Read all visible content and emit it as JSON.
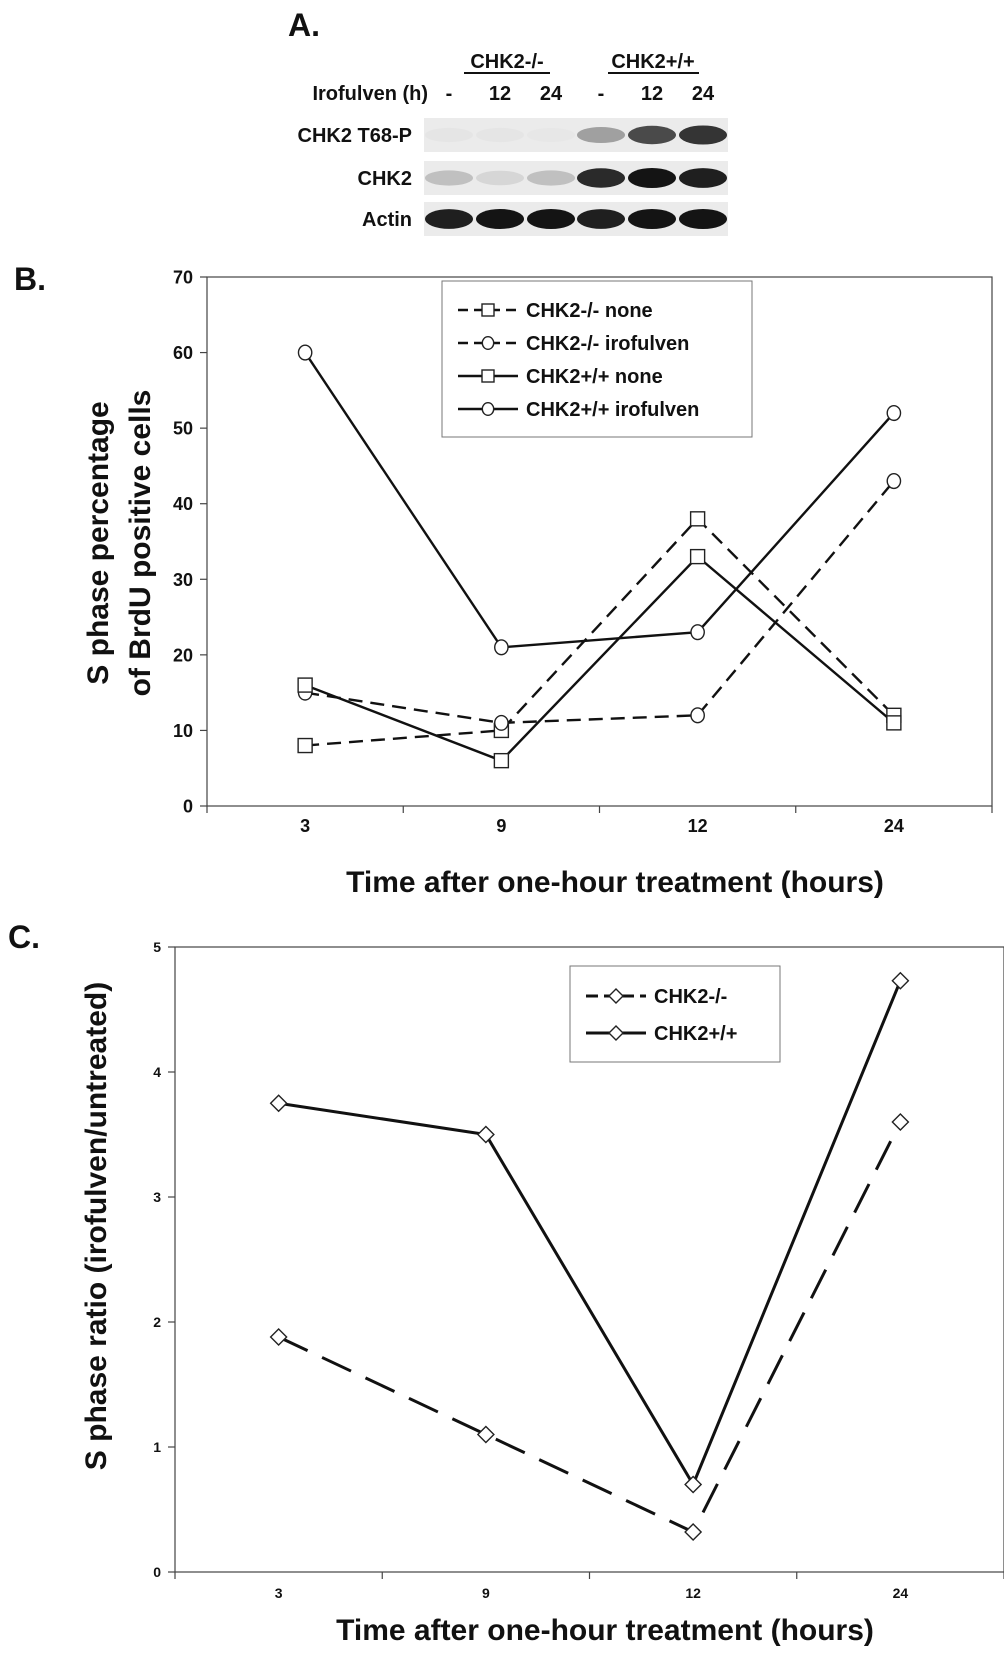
{
  "panel_a": {
    "label": "A.",
    "group_left": "CHK2-/-",
    "group_right": "CHK2+/+",
    "treatment_label": "Irofulven (h)",
    "lanes": [
      "-",
      "12",
      "24",
      "-",
      "12",
      "24"
    ],
    "rows": [
      {
        "label": "CHK2 T68-P",
        "intensities": [
          0.03,
          0.03,
          0.02,
          0.35,
          0.75,
          0.85
        ]
      },
      {
        "label": "CHK2",
        "intensities": [
          0.2,
          0.1,
          0.2,
          0.9,
          1.0,
          0.95
        ]
      },
      {
        "label": "Actin",
        "intensities": [
          0.95,
          1.0,
          1.0,
          0.95,
          1.0,
          1.0
        ]
      }
    ]
  },
  "chart_data": [
    {
      "panel_label": "B.",
      "type": "line",
      "categories": [
        "3",
        "9",
        "12",
        "24"
      ],
      "xlabel": "Time after one-hour treatment (hours)",
      "ylabel_lines": [
        "S phase percentage",
        "of BrdU positive cells"
      ],
      "ylim": [
        0,
        70
      ],
      "yticks": [
        0,
        10,
        20,
        30,
        40,
        50,
        60,
        70
      ],
      "legend_position": "top-center",
      "series": [
        {
          "name": "CHK2-/- none",
          "values": [
            8,
            10,
            38,
            12
          ],
          "marker": "square",
          "dash": true
        },
        {
          "name": "CHK2-/- irofulven",
          "values": [
            15,
            11,
            12,
            43
          ],
          "marker": "circle",
          "dash": true
        },
        {
          "name": "CHK2+/+ none",
          "values": [
            16,
            6,
            33,
            11
          ],
          "marker": "square",
          "dash": false
        },
        {
          "name": "CHK2+/+ irofulven",
          "values": [
            60,
            21,
            23,
            52
          ],
          "marker": "circle",
          "dash": false
        }
      ]
    },
    {
      "panel_label": "C.",
      "type": "line",
      "categories": [
        "3",
        "9",
        "12",
        "24"
      ],
      "xlabel": "Time after one-hour treatment (hours)",
      "ylabel": "S phase ratio (irofulven/untreated)",
      "ylim": [
        0,
        5
      ],
      "yticks": [
        0,
        1,
        2,
        3,
        4,
        5
      ],
      "legend_position": "top-right",
      "series": [
        {
          "name": "CHK2-/-",
          "values": [
            1.88,
            1.1,
            0.32,
            3.6
          ],
          "marker": "diamond",
          "dash": true
        },
        {
          "name": "CHK2+/+",
          "values": [
            3.75,
            3.5,
            0.7,
            4.73
          ],
          "marker": "diamond",
          "dash": false
        }
      ]
    }
  ]
}
